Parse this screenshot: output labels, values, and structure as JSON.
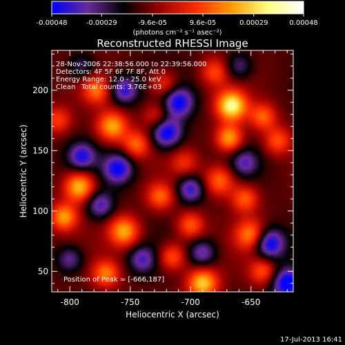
{
  "chart_data": {
    "type": "heatmap",
    "title": "Reconstructed RHESSI Image",
    "xlabel": "Heliocentric X (arcsec)",
    "ylabel": "Heliocentric Y (arcsec)",
    "xlim": [
      -815,
      -615
    ],
    "ylim": [
      33,
      233
    ],
    "x_ticks": [
      -800,
      -750,
      -700,
      -650
    ],
    "x_tick_labels": [
      "-800",
      "-750",
      "-700",
      "-650"
    ],
    "y_ticks": [
      50,
      100,
      150,
      200
    ],
    "y_tick_labels": [
      "50",
      "100",
      "150",
      "200"
    ],
    "colorbar": {
      "ticks": [
        -0.00048,
        -0.00029,
        -9.6e-05,
        9.6e-05,
        0.00029,
        0.00048
      ],
      "tick_labels": [
        "-0.00048",
        "-0.00029",
        "-9.6e-05",
        "9.6e-05",
        "0.00029",
        "0.00048"
      ],
      "label": "(photons cm⁻² s⁻¹ asec⁻²)",
      "colors": [
        "#0000ff",
        "#6a2a9c",
        "#000000",
        "#9a0000",
        "#ff2a00",
        "#ff9a00",
        "#ffff80",
        "#ffffff"
      ]
    },
    "annotations": {
      "time": "28-Nov-2006 22:38:56.000 to 22:39:56.000",
      "detectors": "Detectors: 4F 5F 6F 7F 8F, Att 0",
      "energy": "Energy Range: 12.0 - 25.0 keV",
      "algorithm": "Clean",
      "counts": "Total counts: 3.76E+03",
      "peak": "Position of Peak = [-666,187]"
    },
    "peak_position": [
      -666,
      187
    ],
    "sources": [
      {
        "x": -666,
        "y": 187,
        "v": 1.0,
        "s": 9
      },
      {
        "x": -668,
        "y": 160,
        "v": 0.75,
        "s": 8
      },
      {
        "x": -676,
        "y": 125,
        "v": 0.6,
        "s": 9
      },
      {
        "x": -655,
        "y": 110,
        "v": 0.55,
        "s": 8
      },
      {
        "x": -650,
        "y": 80,
        "v": 0.65,
        "s": 9
      },
      {
        "x": -628,
        "y": 158,
        "v": 0.5,
        "s": 8
      },
      {
        "x": -640,
        "y": 178,
        "v": 0.55,
        "s": 8
      },
      {
        "x": -765,
        "y": 170,
        "v": 0.75,
        "s": 9
      },
      {
        "x": -778,
        "y": 200,
        "v": 0.55,
        "s": 8
      },
      {
        "x": -745,
        "y": 155,
        "v": 0.55,
        "s": 8
      },
      {
        "x": -792,
        "y": 120,
        "v": 0.85,
        "s": 9
      },
      {
        "x": -805,
        "y": 95,
        "v": 0.7,
        "s": 8
      },
      {
        "x": -755,
        "y": 83,
        "v": 0.75,
        "s": 9
      },
      {
        "x": -725,
        "y": 112,
        "v": 0.55,
        "s": 8
      },
      {
        "x": -700,
        "y": 88,
        "v": 0.55,
        "s": 8
      },
      {
        "x": -715,
        "y": 62,
        "v": 0.55,
        "s": 8
      },
      {
        "x": -770,
        "y": 48,
        "v": 0.6,
        "s": 8
      },
      {
        "x": -690,
        "y": 40,
        "v": 0.85,
        "s": 9
      },
      {
        "x": -722,
        "y": 205,
        "v": 0.45,
        "s": 8
      },
      {
        "x": -728,
        "y": 178,
        "v": 0.4,
        "s": 8
      },
      {
        "x": -640,
        "y": 50,
        "v": 0.5,
        "s": 8
      },
      {
        "x": -705,
        "y": 140,
        "v": 0.35,
        "s": 8
      },
      {
        "x": -680,
        "y": 215,
        "v": 0.45,
        "s": 8
      },
      {
        "x": -810,
        "y": 175,
        "v": 0.45,
        "s": 8
      },
      {
        "x": -760,
        "y": 135,
        "v": -0.7,
        "s": 9
      },
      {
        "x": -720,
        "y": 165,
        "v": -0.8,
        "s": 9
      },
      {
        "x": -710,
        "y": 190,
        "v": -0.7,
        "s": 9
      },
      {
        "x": -700,
        "y": 118,
        "v": -0.6,
        "s": 8
      },
      {
        "x": -755,
        "y": 200,
        "v": -0.6,
        "s": 8
      },
      {
        "x": -635,
        "y": 73,
        "v": -0.8,
        "s": 9
      },
      {
        "x": -620,
        "y": 40,
        "v": -0.8,
        "s": 9
      },
      {
        "x": -790,
        "y": 145,
        "v": -0.6,
        "s": 8
      },
      {
        "x": -775,
        "y": 105,
        "v": -0.55,
        "s": 8
      },
      {
        "x": -740,
        "y": 60,
        "v": -0.5,
        "s": 8
      },
      {
        "x": -655,
        "y": 140,
        "v": -0.45,
        "s": 8
      },
      {
        "x": -690,
        "y": 65,
        "v": -0.5,
        "s": 8
      },
      {
        "x": -800,
        "y": 60,
        "v": -0.45,
        "s": 8
      },
      {
        "x": -660,
        "y": 220,
        "v": -0.4,
        "s": 8
      },
      {
        "x": -790,
        "y": 220,
        "v": -0.35,
        "s": 8
      }
    ]
  },
  "footer": {
    "date": "17-Jul-2013 16:41"
  }
}
